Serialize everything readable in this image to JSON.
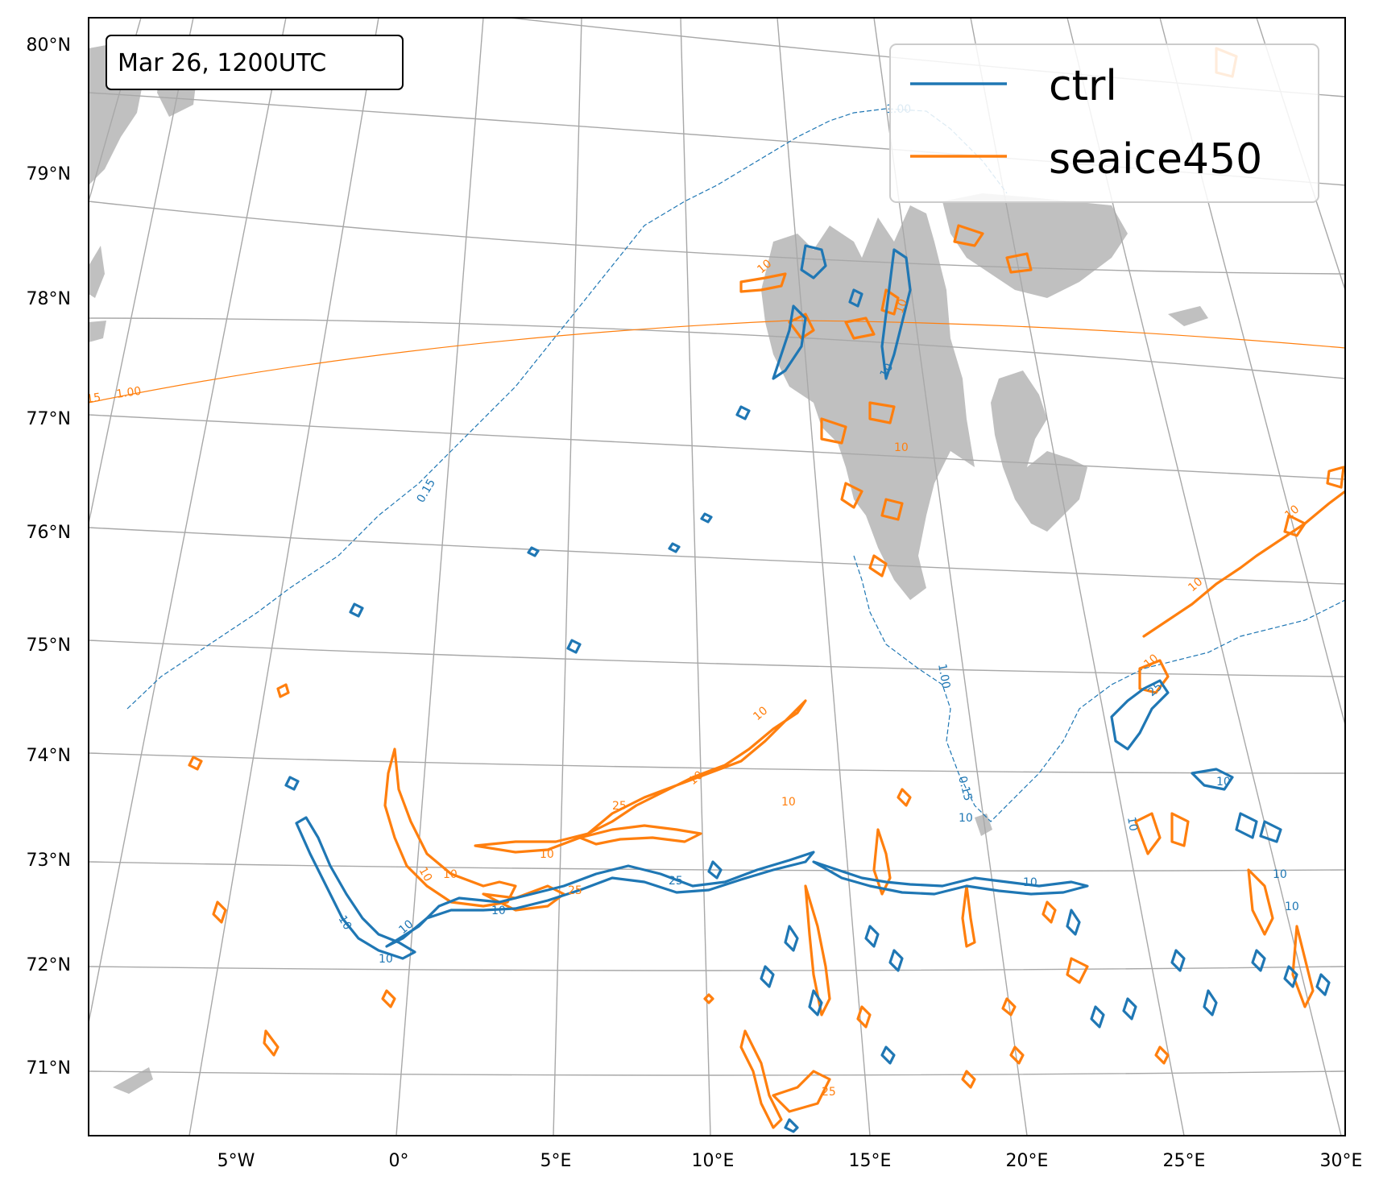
{
  "timestamp_box": "Mar 26, 1200UTC",
  "legend": [
    {
      "label": "ctrl",
      "color": "#1f77b4"
    },
    {
      "label": "seaice450",
      "color": "#ff7f0e"
    }
  ],
  "lat_labels": [
    "80°N",
    "79°N",
    "78°N",
    "77°N",
    "76°N",
    "75°N",
    "74°N",
    "73°N",
    "72°N",
    "71°N"
  ],
  "lon_labels": [
    "5°W",
    "0°",
    "5°E",
    "10°E",
    "15°E",
    "20°E",
    "25°E",
    "30°E"
  ],
  "contour_labels": {
    "ten": "10",
    "twentyfive": "25",
    "fifteen": "15",
    "zero_fifteen": "0.15",
    "one": "1.00"
  },
  "colors": {
    "ctrl": "#1f77b4",
    "seaice450": "#ff7f0e",
    "land": "#c0c0c0",
    "grid": "#a8a8a8"
  }
}
